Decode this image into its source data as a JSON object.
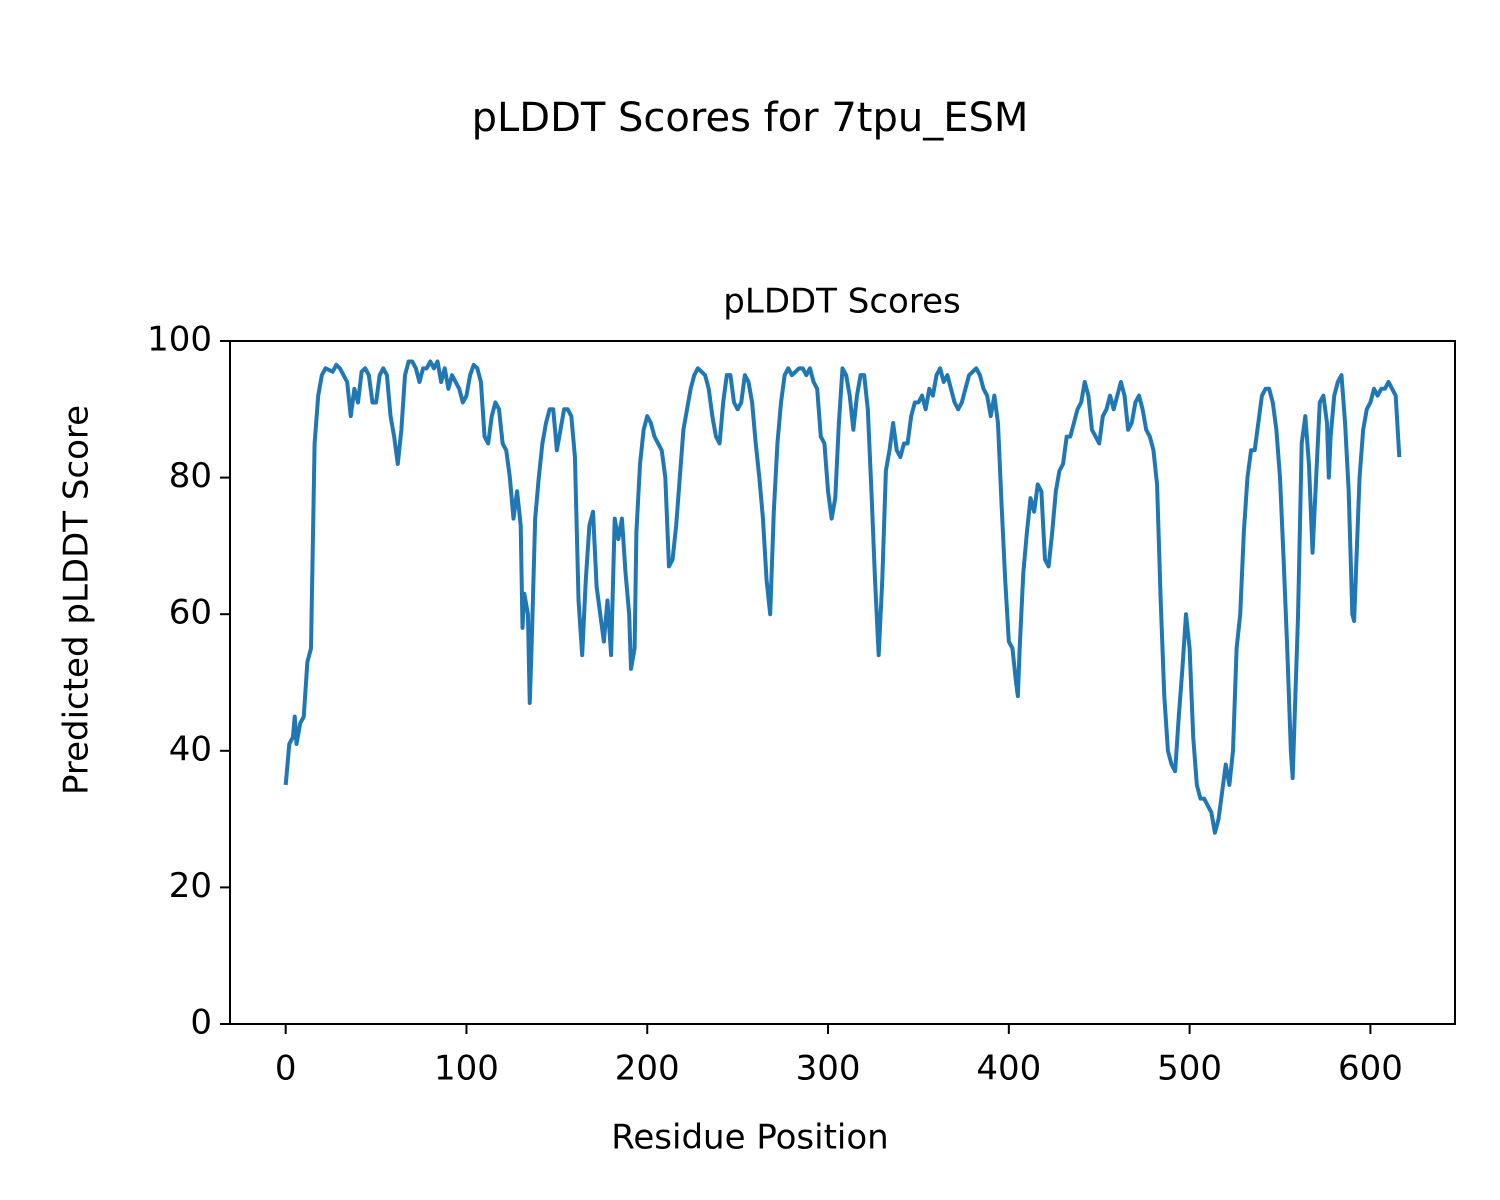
{
  "chart_data": {
    "type": "line",
    "suptitle": "pLDDT Scores for 7tpu_ESM",
    "title": "pLDDT Scores",
    "xlabel": "Residue Position",
    "ylabel": "Predicted pLDDT Score",
    "xlim": [
      -30.8,
      646.8
    ],
    "ylim": [
      0,
      100
    ],
    "xticks": [
      0,
      100,
      200,
      300,
      400,
      500,
      600
    ],
    "yticks": [
      0,
      20,
      40,
      60,
      80,
      100
    ],
    "grid": false,
    "series": [
      {
        "color": "#1f77b4",
        "x": [
          0,
          2,
          4,
          5,
          6,
          8,
          10,
          12,
          14,
          15,
          16,
          18,
          20,
          22,
          26,
          28,
          30,
          32,
          34,
          36,
          38,
          40,
          42,
          44,
          46,
          48,
          50,
          52,
          54,
          56,
          58,
          60,
          62,
          64,
          66,
          68,
          70,
          72,
          74,
          76,
          78,
          80,
          82,
          84,
          86,
          88,
          90,
          92,
          94,
          96,
          98,
          100,
          102,
          104,
          106,
          108,
          110,
          112,
          114,
          116,
          118,
          120,
          122,
          124,
          126,
          128,
          130,
          131,
          132,
          134,
          135,
          136,
          138,
          140,
          142,
          144,
          146,
          148,
          150,
          152,
          154,
          156,
          158,
          160,
          162,
          164,
          166,
          168,
          170,
          172,
          174,
          176,
          178,
          180,
          182,
          184,
          186,
          188,
          190,
          191,
          193,
          194,
          196,
          198,
          200,
          202,
          204,
          206,
          208,
          210,
          212,
          214,
          216,
          218,
          220,
          222,
          224,
          226,
          228,
          230,
          232,
          234,
          236,
          238,
          240,
          242,
          244,
          246,
          248,
          250,
          252,
          254,
          256,
          258,
          260,
          262,
          264,
          266,
          268,
          270,
          272,
          274,
          276,
          278,
          280,
          282,
          284,
          286,
          288,
          290,
          292,
          294,
          296,
          298,
          300,
          302,
          304,
          306,
          308,
          310,
          312,
          314,
          316,
          318,
          320,
          322,
          324,
          326,
          328,
          330,
          332,
          334,
          336,
          338,
          340,
          342,
          344,
          346,
          348,
          350,
          352,
          354,
          356,
          358,
          360,
          362,
          364,
          366,
          368,
          370,
          372,
          374,
          376,
          378,
          380,
          382,
          384,
          386,
          388,
          390,
          392,
          394,
          396,
          398,
          400,
          402,
          404,
          405,
          406,
          408,
          410,
          412,
          414,
          416,
          418,
          420,
          422,
          424,
          426,
          428,
          430,
          432,
          434,
          436,
          438,
          440,
          442,
          444,
          446,
          448,
          450,
          452,
          454,
          456,
          458,
          460,
          462,
          464,
          466,
          468,
          470,
          472,
          474,
          476,
          478,
          480,
          482,
          484,
          486,
          488,
          490,
          492,
          494,
          496,
          498,
          500,
          502,
          504,
          506,
          508,
          510,
          512,
          514,
          516,
          518,
          520,
          522,
          524,
          526,
          528,
          530,
          532,
          534,
          536,
          538,
          540,
          542,
          544,
          546,
          548,
          550,
          552,
          554,
          556,
          557,
          558,
          560,
          562,
          564,
          566,
          568,
          570,
          572,
          574,
          576,
          577,
          578,
          580,
          582,
          584,
          586,
          588,
          590,
          591,
          592,
          594,
          596,
          598,
          600,
          602,
          604,
          606,
          608,
          610,
          612,
          614,
          616
        ],
        "values": [
          35,
          41,
          42,
          45,
          41,
          44,
          45,
          53,
          55,
          70,
          85,
          92,
          95,
          96,
          95.5,
          96.5,
          96,
          95,
          94,
          89,
          93,
          91,
          95.5,
          96,
          95,
          91,
          91,
          95,
          96,
          95,
          89,
          86,
          82,
          87,
          95,
          97,
          97,
          96,
          94,
          96,
          96,
          97,
          96,
          97,
          94,
          96,
          93,
          95,
          94,
          93,
          91,
          92,
          95,
          96.5,
          96,
          94,
          86,
          85,
          89,
          91,
          90,
          85,
          84,
          80,
          74,
          78,
          73,
          58,
          63,
          60,
          47,
          55,
          74,
          80,
          85,
          88,
          90,
          90,
          84,
          87,
          90,
          90,
          89,
          83,
          62,
          54,
          65,
          73,
          75,
          64,
          60,
          56,
          62,
          54,
          74,
          71,
          74,
          66,
          60,
          52,
          55,
          72,
          82,
          87,
          89,
          88,
          86,
          85,
          84,
          80,
          67,
          68,
          73,
          80,
          87,
          90,
          93,
          95,
          96,
          95.5,
          95,
          93,
          89,
          86,
          85,
          91,
          95,
          95,
          91,
          90,
          91,
          95,
          94,
          91,
          85,
          80,
          74,
          65,
          60,
          75,
          85,
          91,
          95,
          96,
          95,
          95.5,
          96,
          96,
          95,
          96,
          94,
          93,
          86,
          85,
          78,
          74,
          77,
          88,
          96,
          95,
          92,
          87,
          92,
          95,
          95,
          90,
          78,
          65,
          54,
          65,
          81,
          84,
          88,
          84,
          83,
          85,
          85,
          89,
          91,
          91,
          92,
          90,
          93,
          92,
          95,
          96,
          94,
          95,
          93,
          91,
          90,
          91,
          93,
          95,
          95.5,
          96,
          95,
          93,
          92,
          89,
          92,
          88,
          76,
          65,
          56,
          55,
          50,
          48,
          55,
          66,
          72,
          77,
          75,
          79,
          78,
          68,
          67,
          72,
          78,
          81,
          82,
          86,
          86,
          88,
          90,
          91,
          94,
          92,
          87,
          86,
          85,
          89,
          90,
          92,
          90,
          92,
          94,
          92,
          87,
          88,
          91,
          92,
          90,
          87,
          86,
          84,
          79,
          62,
          48,
          40,
          38,
          37,
          45,
          52,
          60,
          55,
          42,
          35,
          33,
          33,
          32,
          31,
          28,
          30,
          34,
          38,
          35,
          40,
          55,
          60,
          72,
          80,
          84,
          84,
          88,
          92,
          93,
          93,
          91,
          87,
          80,
          68,
          55,
          40,
          36,
          44,
          60,
          85,
          89,
          82,
          69,
          80,
          91,
          92,
          88,
          80,
          86,
          92,
          94,
          95,
          88,
          78,
          60,
          59,
          66,
          80,
          87,
          90,
          91,
          93,
          92,
          93,
          93,
          94,
          93,
          92,
          83
        ]
      }
    ]
  }
}
